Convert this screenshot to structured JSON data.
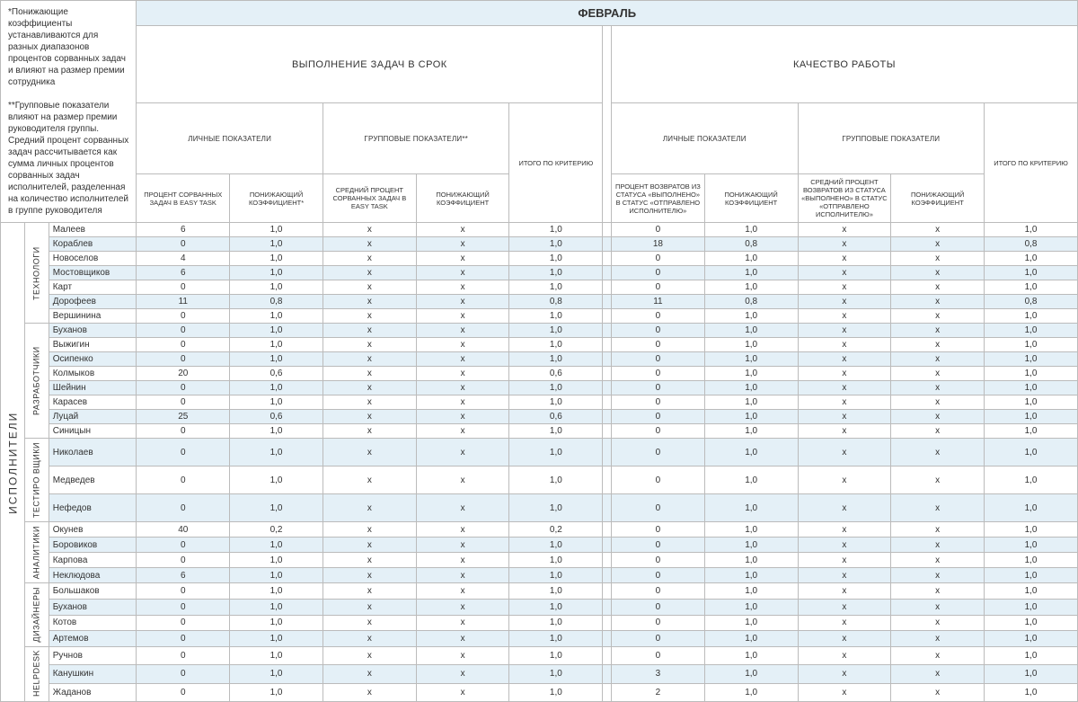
{
  "notes": {
    "note1": "*Понижающие коэффициенты устанавливаются для разных диапазонов процентов сорванных задач и влияют на размер премии сотрудника",
    "note2": "**Групповые показатели влияют на размер премии руководителя группы. Средний процент сорванных задач рассчитывается как сумма личных процентов сорванных задач исполнителей, разделенная на количество исполнителей в группе руководителя"
  },
  "month": "ФЕВРАЛЬ",
  "sections": {
    "s1": "ВЫПОЛНЕНИЕ ЗАДАЧ В СРОК",
    "s2": "КАЧЕСТВО РАБОТЫ"
  },
  "subsections": {
    "personal": "ЛИЧНЫЕ ПОКАЗАТЕЛИ",
    "group": "ГРУППОВЫЕ ПОКАЗАТЕЛИ**",
    "group2": "ГРУППОВЫЕ ПОКАЗАТЕЛИ"
  },
  "columns": {
    "c1": "ПРОЦЕНТ СОРВАННЫХ ЗАДАЧ В EASY TASK",
    "c2": "ПОНИЖАЮЩИЙ КОЭФФИЦИЕНТ*",
    "c3": "СРЕДНИЙ ПРОЦЕНТ СОРВАННЫХ ЗАДАЧ В EASY TASK",
    "c4": "ПОНИЖАЮЩИЙ КОЭФФИЦИЕНТ",
    "c5": "ИТОГО ПО КРИТЕРИЮ",
    "c6": "ПРОЦЕНТ ВОЗВРАТОВ ИЗ СТАТУСА «ВЫПОЛНЕНО» В СТАТУС «ОТПРАВЛЕНО ИСПОЛНИТЕЛЮ»",
    "c7": "ПОНИЖАЮЩИЙ КОЭФФИЦИЕНТ",
    "c8": "СРЕДНИЙ ПРОЦЕНТ ВОЗВРАТОВ ИЗ СТАТУСА «ВЫПОЛНЕНО» В СТАТУС «ОТПРАВЛЕНО ИСПОЛНИТЕЛЮ»",
    "c9": "ПОНИЖАЮЩИЙ КОЭФФИЦИЕНТ",
    "c10": "ИТОГО ПО КРИТЕРИЮ"
  },
  "mainLabel": "ИСПОЛНИТЕЛИ",
  "groups": [
    {
      "label": "ТЕХНОЛОГИ",
      "rows": [
        {
          "n": "Малеев",
          "v": [
            "6",
            "1,0",
            "x",
            "x",
            "1,0",
            "0",
            "1,0",
            "x",
            "x",
            "1,0"
          ]
        },
        {
          "n": "Кораблев",
          "v": [
            "0",
            "1,0",
            "x",
            "x",
            "1,0",
            "18",
            "0,8",
            "x",
            "x",
            "0,8"
          ]
        },
        {
          "n": "Новоселов",
          "v": [
            "4",
            "1,0",
            "x",
            "x",
            "1,0",
            "0",
            "1,0",
            "x",
            "x",
            "1,0"
          ]
        },
        {
          "n": "Мостовщиков",
          "v": [
            "6",
            "1,0",
            "x",
            "x",
            "1,0",
            "0",
            "1,0",
            "x",
            "x",
            "1,0"
          ]
        },
        {
          "n": "Карт",
          "v": [
            "0",
            "1,0",
            "x",
            "x",
            "1,0",
            "0",
            "1,0",
            "x",
            "x",
            "1,0"
          ]
        },
        {
          "n": "Дорофеев",
          "v": [
            "11",
            "0,8",
            "x",
            "x",
            "0,8",
            "11",
            "0,8",
            "x",
            "x",
            "0,8"
          ]
        },
        {
          "n": "Вершинина",
          "v": [
            "0",
            "1,0",
            "x",
            "x",
            "1,0",
            "0",
            "1,0",
            "x",
            "x",
            "1,0"
          ]
        }
      ]
    },
    {
      "label": "РАЗРАБОТЧИКИ",
      "rows": [
        {
          "n": "Буханов",
          "v": [
            "0",
            "1,0",
            "x",
            "x",
            "1,0",
            "0",
            "1,0",
            "x",
            "x",
            "1,0"
          ]
        },
        {
          "n": "Выжигин",
          "v": [
            "0",
            "1,0",
            "x",
            "x",
            "1,0",
            "0",
            "1,0",
            "x",
            "x",
            "1,0"
          ]
        },
        {
          "n": "Осипенко",
          "v": [
            "0",
            "1,0",
            "x",
            "x",
            "1,0",
            "0",
            "1,0",
            "x",
            "x",
            "1,0"
          ]
        },
        {
          "n": "Колмыков",
          "v": [
            "20",
            "0,6",
            "x",
            "x",
            "0,6",
            "0",
            "1,0",
            "x",
            "x",
            "1,0"
          ]
        },
        {
          "n": "Шейнин",
          "v": [
            "0",
            "1,0",
            "x",
            "x",
            "1,0",
            "0",
            "1,0",
            "x",
            "x",
            "1,0"
          ]
        },
        {
          "n": "Карасев",
          "v": [
            "0",
            "1,0",
            "x",
            "x",
            "1,0",
            "0",
            "1,0",
            "x",
            "x",
            "1,0"
          ]
        },
        {
          "n": "Луцай",
          "v": [
            "25",
            "0,6",
            "x",
            "x",
            "0,6",
            "0",
            "1,0",
            "x",
            "x",
            "1,0"
          ]
        },
        {
          "n": "Синицын",
          "v": [
            "0",
            "1,0",
            "x",
            "x",
            "1,0",
            "0",
            "1,0",
            "x",
            "x",
            "1,0"
          ]
        }
      ]
    },
    {
      "label": "ТЕСТИРО ВЩИКИ",
      "rows": [
        {
          "n": "Николаев",
          "v": [
            "0",
            "1,0",
            "x",
            "x",
            "1,0",
            "0",
            "1,0",
            "x",
            "x",
            "1,0"
          ]
        },
        {
          "n": "Медведев",
          "v": [
            "0",
            "1,0",
            "x",
            "x",
            "1,0",
            "0",
            "1,0",
            "x",
            "x",
            "1,0"
          ]
        },
        {
          "n": "Нефедов",
          "v": [
            "0",
            "1,0",
            "x",
            "x",
            "1,0",
            "0",
            "1,0",
            "x",
            "x",
            "1,0"
          ]
        }
      ]
    },
    {
      "label": "АНАЛИТИКИ",
      "rows": [
        {
          "n": "Окунев",
          "v": [
            "40",
            "0,2",
            "x",
            "x",
            "0,2",
            "0",
            "1,0",
            "x",
            "x",
            "1,0"
          ]
        },
        {
          "n": "Боровиков",
          "v": [
            "0",
            "1,0",
            "x",
            "x",
            "1,0",
            "0",
            "1,0",
            "x",
            "x",
            "1,0"
          ]
        },
        {
          "n": "Карпова",
          "v": [
            "0",
            "1,0",
            "x",
            "x",
            "1,0",
            "0",
            "1,0",
            "x",
            "x",
            "1,0"
          ]
        },
        {
          "n": "Неклюдова",
          "v": [
            "6",
            "1,0",
            "x",
            "x",
            "1,0",
            "0",
            "1,0",
            "x",
            "x",
            "1,0"
          ]
        }
      ]
    },
    {
      "label": "ДИЗАЙНЕРЫ",
      "rows": [
        {
          "n": "Большаков",
          "v": [
            "0",
            "1,0",
            "x",
            "x",
            "1,0",
            "0",
            "1,0",
            "x",
            "x",
            "1,0"
          ]
        },
        {
          "n": "Буханов",
          "v": [
            "0",
            "1,0",
            "x",
            "x",
            "1,0",
            "0",
            "1,0",
            "x",
            "x",
            "1,0"
          ]
        },
        {
          "n": "Котов",
          "v": [
            "0",
            "1,0",
            "x",
            "x",
            "1,0",
            "0",
            "1,0",
            "x",
            "x",
            "1,0"
          ]
        },
        {
          "n": "Артемов",
          "v": [
            "0",
            "1,0",
            "x",
            "x",
            "1,0",
            "0",
            "1,0",
            "x",
            "x",
            "1,0"
          ]
        }
      ]
    },
    {
      "label": "HELPDESK",
      "rows": [
        {
          "n": "Ручнов",
          "v": [
            "0",
            "1,0",
            "x",
            "x",
            "1,0",
            "0",
            "1,0",
            "x",
            "x",
            "1,0"
          ]
        },
        {
          "n": "Канушкин",
          "v": [
            "0",
            "1,0",
            "x",
            "x",
            "1,0",
            "3",
            "1,0",
            "x",
            "x",
            "1,0"
          ]
        },
        {
          "n": "Жаданов",
          "v": [
            "0",
            "1,0",
            "x",
            "x",
            "1,0",
            "2",
            "1,0",
            "x",
            "x",
            "1,0"
          ]
        }
      ]
    }
  ],
  "colors": {
    "stripe": "#e4f0f7",
    "border": "#bbbbbb",
    "text": "#333333",
    "bg": "#ffffff"
  }
}
